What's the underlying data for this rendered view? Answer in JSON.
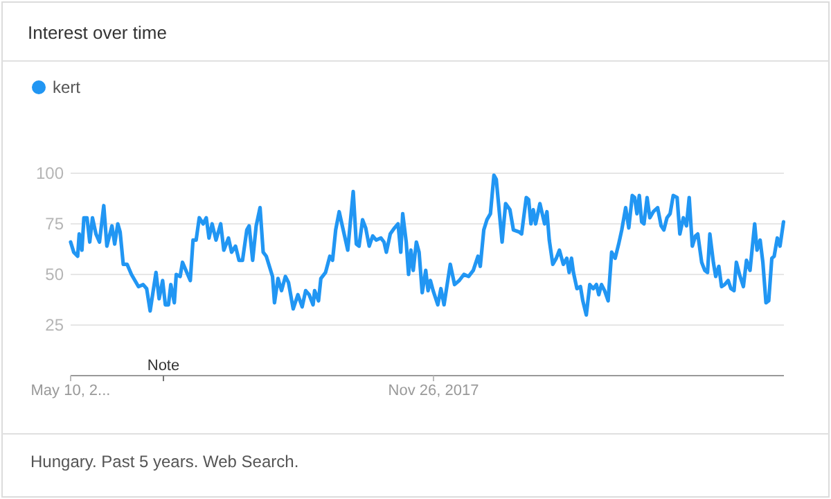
{
  "chart_data": {
    "type": "line",
    "title": "Interest over time",
    "x": [
      "2015-05-10",
      "2015-05-18",
      "2015-05-28",
      "2015-06-01",
      "2015-06-08",
      "2015-06-13",
      "2015-06-21",
      "2015-06-28",
      "2015-07-05",
      "2015-07-14",
      "2015-07-23",
      "2015-08-03",
      "2015-08-11",
      "2015-08-24",
      "2015-08-31",
      "2015-09-08",
      "2015-09-14",
      "2015-09-22",
      "2015-10-02",
      "2015-10-13",
      "2015-10-31",
      "2015-11-12",
      "2015-11-21",
      "2015-11-30",
      "2015-12-15",
      "2015-12-23",
      "2016-01-01",
      "2016-01-08",
      "2016-01-16",
      "2016-01-22",
      "2016-01-31",
      "2016-02-05",
      "2016-02-15",
      "2016-02-21",
      "2016-03-03",
      "2016-03-12",
      "2016-03-19",
      "2016-03-27",
      "2016-04-04",
      "2016-04-14",
      "2016-04-22",
      "2016-04-29",
      "2016-05-07",
      "2016-05-17",
      "2016-05-29",
      "2016-06-06",
      "2016-06-18",
      "2016-06-26",
      "2016-07-06",
      "2016-07-15",
      "2016-07-24",
      "2016-08-04",
      "2016-08-10",
      "2016-08-19",
      "2016-08-28",
      "2016-09-07",
      "2016-09-15",
      "2016-09-23",
      "2016-10-09",
      "2016-10-14",
      "2016-10-23",
      "2016-11-01",
      "2016-11-11",
      "2016-11-19",
      "2016-12-01",
      "2016-12-13",
      "2016-12-24",
      "2017-01-02",
      "2017-01-11",
      "2017-01-21",
      "2017-01-25",
      "2017-02-04",
      "2017-02-10",
      "2017-02-22",
      "2017-03-05",
      "2017-03-12",
      "2017-03-20",
      "2017-03-29",
      "2017-04-06",
      "2017-04-20",
      "2017-05-04",
      "2017-05-12",
      "2017-05-19",
      "2017-05-28",
      "2017-06-05",
      "2017-06-14",
      "2017-06-23",
      "2017-07-02",
      "2017-07-14",
      "2017-07-22",
      "2017-07-28",
      "2017-08-07",
      "2017-08-18",
      "2017-08-27",
      "2017-09-03",
      "2017-09-08",
      "2017-09-17",
      "2017-09-23",
      "2017-09-29",
      "2017-10-05",
      "2017-10-13",
      "2017-10-20",
      "2017-10-28",
      "2017-11-06",
      "2017-11-12",
      "2017-11-18",
      "2017-11-25",
      "2017-12-07",
      "2017-12-15",
      "2017-12-23",
      "2018-01-08",
      "2018-01-19",
      "2018-01-31",
      "2018-02-12",
      "2018-02-24",
      "2018-03-08",
      "2018-03-20",
      "2018-03-26",
      "2018-04-04",
      "2018-04-12",
      "2018-04-21",
      "2018-04-30",
      "2018-05-06",
      "2018-05-21",
      "2018-05-30",
      "2018-06-10",
      "2018-06-19",
      "2018-07-04",
      "2018-07-10",
      "2018-07-22",
      "2018-07-28",
      "2018-08-03",
      "2018-08-09",
      "2018-08-15",
      "2018-08-26",
      "2018-09-07",
      "2018-09-13",
      "2018-09-19",
      "2018-09-28",
      "2018-10-07",
      "2018-10-15",
      "2018-10-25",
      "2018-11-03",
      "2018-11-09",
      "2018-11-15",
      "2018-11-20",
      "2018-11-29",
      "2018-12-08",
      "2018-12-14",
      "2018-12-23",
      "2019-01-01",
      "2019-01-10",
      "2019-01-18",
      "2019-01-24",
      "2019-01-31",
      "2019-02-08",
      "2019-02-17",
      "2019-02-26",
      "2019-03-07",
      "2019-03-16",
      "2019-03-24",
      "2019-04-03",
      "2019-04-11",
      "2019-04-20",
      "2019-04-26",
      "2019-05-02",
      "2019-05-08",
      "2019-05-14",
      "2019-05-20",
      "2019-05-28",
      "2019-06-04",
      "2019-06-13",
      "2019-06-24",
      "2019-07-03",
      "2019-07-10",
      "2019-07-18",
      "2019-07-26",
      "2019-08-03",
      "2019-08-13",
      "2019-08-20",
      "2019-08-29",
      "2019-09-06",
      "2019-09-13",
      "2019-09-21",
      "2019-09-29",
      "2019-10-05",
      "2019-10-15",
      "2019-10-23",
      "2019-10-30",
      "2019-11-05",
      "2019-11-14",
      "2019-11-20",
      "2019-11-28",
      "2019-12-05",
      "2019-12-13",
      "2019-12-22",
      "2019-12-29",
      "2020-01-06",
      "2020-01-12",
      "2020-01-20",
      "2020-01-30",
      "2020-02-07",
      "2020-02-16",
      "2020-02-28",
      "2020-03-05",
      "2020-03-13",
      "2020-03-20",
      "2020-03-28",
      "2020-04-04",
      "2020-04-12",
      "2020-04-18",
      "2020-04-26",
      "2020-05-03",
      "2020-05-12"
    ],
    "series": [
      {
        "name": "kert",
        "color": "#2196f3",
        "values": [
          66,
          61,
          59,
          70,
          62,
          78,
          78,
          66,
          78,
          70,
          66,
          84,
          64,
          74,
          65,
          75,
          71,
          55,
          55,
          50,
          44,
          45,
          43,
          32,
          51,
          38,
          47,
          35,
          35,
          45,
          36,
          50,
          49,
          56,
          51,
          47,
          67,
          67,
          78,
          75,
          78,
          68,
          75,
          67,
          75,
          62,
          68,
          61,
          64,
          57,
          57,
          72,
          74,
          57,
          74,
          83,
          61,
          59,
          49,
          36,
          48,
          42,
          49,
          46,
          33,
          40,
          34,
          42,
          40,
          35,
          42,
          37,
          48,
          51,
          59,
          57,
          72,
          81,
          74,
          62,
          91,
          65,
          64,
          77,
          73,
          64,
          69,
          67,
          68,
          66,
          61,
          70,
          73,
          75,
          61,
          80,
          66,
          50,
          62,
          52,
          66,
          61,
          41,
          52,
          42,
          47,
          42,
          35,
          43,
          35,
          55,
          45,
          47,
          50,
          49,
          52,
          59,
          54,
          72,
          77,
          80,
          99,
          97,
          66,
          85,
          82,
          72,
          71,
          70,
          88,
          87,
          75,
          82,
          75,
          85,
          75,
          81,
          67,
          55,
          58,
          62,
          55,
          58,
          51,
          58,
          51,
          43,
          44,
          37,
          30,
          45,
          43,
          45,
          40,
          45,
          42,
          37,
          61,
          58,
          65,
          72,
          83,
          73,
          89,
          88,
          80,
          89,
          76,
          75,
          88,
          78,
          81,
          83,
          74,
          72,
          78,
          80,
          89,
          88,
          70,
          78,
          74,
          88,
          64,
          69,
          70,
          56,
          52,
          51,
          70,
          56,
          49,
          54,
          44,
          45,
          47,
          43,
          42,
          56,
          50,
          44,
          57,
          52,
          75,
          62,
          67,
          56,
          36,
          37,
          58,
          59,
          68,
          64,
          76
        ]
      }
    ],
    "xlim": [
      "2015-05-10",
      "2020-05-13"
    ],
    "xticks": [
      {
        "value": "2015-05-10",
        "label": "May 10, 2..."
      },
      {
        "value": "2017-11-26",
        "label": "Nov 26, 2017"
      }
    ],
    "ylim": [
      0,
      100
    ],
    "yticks": [
      25,
      50,
      75,
      100
    ],
    "grid": "y",
    "legend": "top left",
    "annotations": [
      "Note",
      "Hungary. Past 5 years. Web Search."
    ]
  }
}
